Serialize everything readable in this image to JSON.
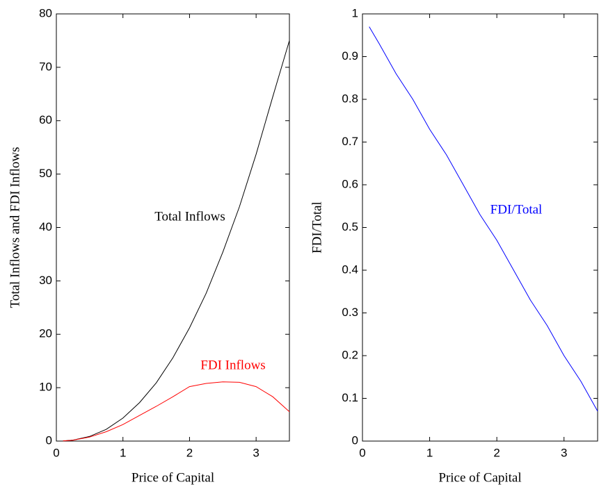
{
  "chart_data": [
    {
      "type": "line",
      "xlabel": "Price of Capital",
      "ylabel": "Total Inflows and FDI Inflows",
      "x": [
        0.1,
        0.25,
        0.5,
        0.75,
        1,
        1.25,
        1.5,
        1.75,
        2,
        2.25,
        2.5,
        2.75,
        3,
        3.25,
        3.5
      ],
      "series": [
        {
          "name": "Total Inflows",
          "color": "#000000",
          "values": [
            0.02,
            0.18,
            0.87,
            2.2,
            4.3,
            7.2,
            10.9,
            15.6,
            21.2,
            27.7,
            35.4,
            43.9,
            53.7,
            64.5,
            75
          ]
        },
        {
          "name": "FDI Inflows",
          "color": "#ff0000",
          "values": [
            0.02,
            0.17,
            0.75,
            1.75,
            3.1,
            4.8,
            6.5,
            8.3,
            10.2,
            10.8,
            11.1,
            11.0,
            10.2,
            8.3,
            5.5
          ]
        }
      ],
      "xlim": [
        0,
        3.5
      ],
      "xticks": [
        0,
        1,
        2,
        3
      ],
      "ylim": [
        0,
        80
      ],
      "yticks": [
        0,
        10,
        20,
        30,
        40,
        50,
        60,
        70,
        80
      ]
    },
    {
      "type": "line",
      "xlabel": "Price of Capital",
      "ylabel": "FDI/Total",
      "x": [
        0.1,
        0.25,
        0.5,
        0.75,
        1,
        1.25,
        1.5,
        1.75,
        2,
        2.25,
        2.5,
        2.75,
        3,
        3.25,
        3.5
      ],
      "series": [
        {
          "name": "FDI/Total",
          "color": "#0000ff",
          "values": [
            0.97,
            0.93,
            0.86,
            0.8,
            0.73,
            0.67,
            0.6,
            0.53,
            0.47,
            0.4,
            0.33,
            0.27,
            0.2,
            0.14,
            0.07
          ]
        }
      ],
      "xlim": [
        0,
        3.5
      ],
      "xticks": [
        0,
        1,
        2,
        3
      ],
      "ylim": [
        0,
        1
      ],
      "yticks": [
        0,
        0.1,
        0.2,
        0.3,
        0.4,
        0.5,
        0.6,
        0.7,
        0.8,
        0.9,
        1
      ]
    }
  ]
}
